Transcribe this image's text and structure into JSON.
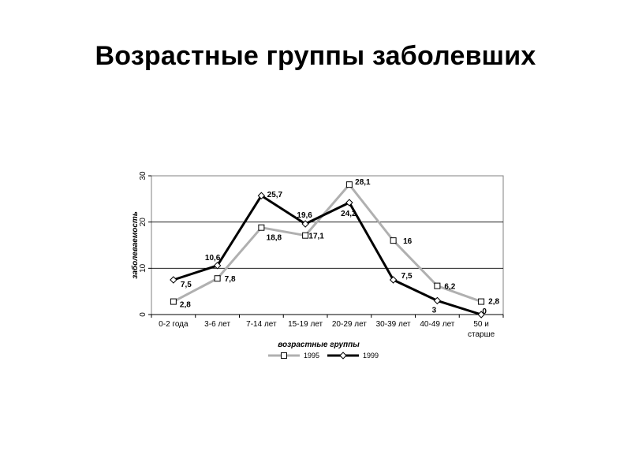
{
  "slide": {
    "title": "Возрастные группы заболевших"
  },
  "chart_data": {
    "type": "line",
    "categories": [
      [
        "0-2 года"
      ],
      [
        "3-6 лет"
      ],
      [
        "7-14 лет"
      ],
      [
        "15-19 лет"
      ],
      [
        "20-29 лет"
      ],
      [
        "30-39 лет"
      ],
      [
        "40-49 лет"
      ],
      [
        "50 и",
        "старше"
      ]
    ],
    "series": [
      {
        "name": "1995",
        "values": [
          2.8,
          7.8,
          18.8,
          17.1,
          28.1,
          16,
          6.2,
          2.8
        ],
        "labels": [
          "2,8",
          "7,8",
          "18,8",
          "17,1",
          "28,1",
          "16",
          "6,2",
          "2,8"
        ],
        "color": "#b0b0b0",
        "marker": "square"
      },
      {
        "name": "1999",
        "values": [
          7.5,
          10.6,
          25.7,
          19.6,
          24.2,
          7.5,
          3,
          0
        ],
        "labels": [
          "7,5",
          "10,6",
          "25,7",
          "19,6",
          "24,2",
          "7,5",
          "3",
          "0"
        ],
        "color": "#000000",
        "marker": "diamond"
      }
    ],
    "xlabel": "возрастные группы",
    "ylabel": "заболеваемость",
    "ylim": [
      0,
      30
    ],
    "yticks": [
      "0",
      "10",
      "20",
      "30"
    ],
    "grid": "horizontal",
    "legend": "bottom"
  }
}
